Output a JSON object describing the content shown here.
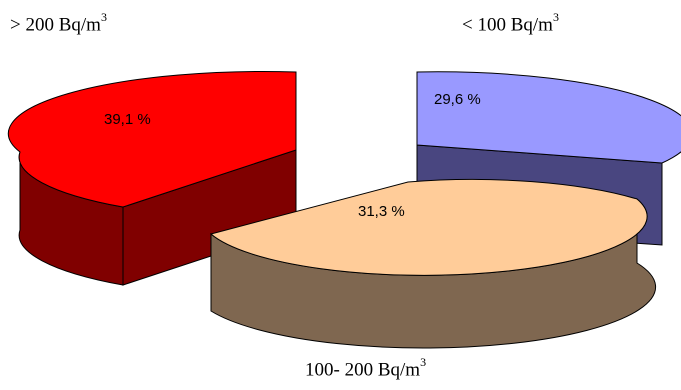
{
  "chart_data": {
    "type": "pie",
    "style": "3d-exploded",
    "slices": [
      {
        "label_text": "> 200 Bq/m",
        "label_sup": "3",
        "value": 39.1,
        "value_label": "39,1 %",
        "color": "#ff0000"
      },
      {
        "label_text": "< 100 Bq/m",
        "label_sup": "3",
        "value": 29.6,
        "value_label": "29,6 %",
        "color": "#9999ff"
      },
      {
        "label_text": "100- 200 Bq/m",
        "label_sup": "3",
        "value": 31.3,
        "value_label": "31,3 %",
        "color": "#ffcc99"
      }
    ]
  }
}
